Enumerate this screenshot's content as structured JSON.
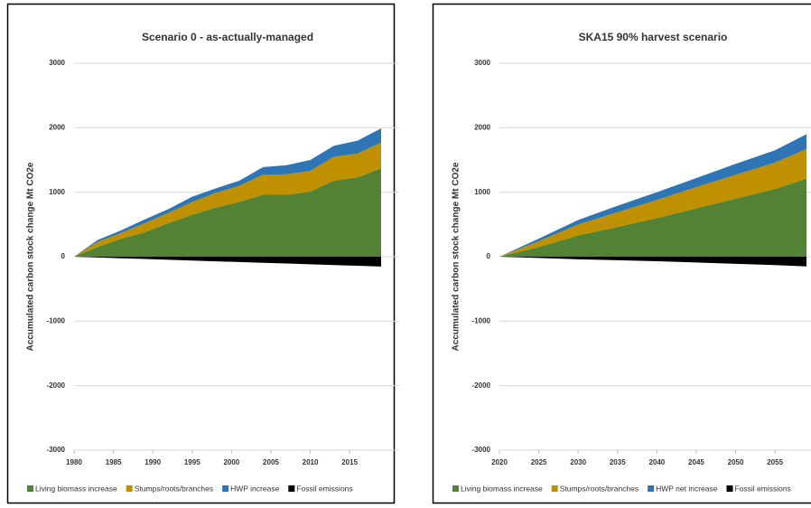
{
  "chart_data": [
    {
      "type": "area",
      "title": "Scenario 0 - as-actually-managed",
      "y_label": "Accumulated carbon stock change Mt CO2e",
      "x": [
        1980,
        1983,
        1986,
        1989,
        1992,
        1995,
        1998,
        2001,
        2004,
        2007,
        2010,
        2013,
        2016,
        2019
      ],
      "xlim": [
        1980,
        2019
      ],
      "xticks": [
        1980,
        1985,
        1990,
        1995,
        2000,
        2005,
        2010,
        2015
      ],
      "ylim": [
        -3000,
        3000
      ],
      "yticks": [
        -3000,
        -2000,
        -1000,
        0,
        1000,
        2000,
        3000
      ],
      "grid": true,
      "series": [
        {
          "name": "Living biomass increase",
          "color": "#548235",
          "values": [
            0,
            150,
            280,
            380,
            520,
            650,
            760,
            850,
            960,
            960,
            1010,
            1180,
            1230,
            1370
          ]
        },
        {
          "name": "Stumps/roots/branches",
          "color": "#bf9000",
          "values": [
            0,
            80,
            90,
            140,
            160,
            200,
            230,
            250,
            310,
            320,
            320,
            370,
            370,
            400
          ]
        },
        {
          "name": "HWP increase",
          "color": "#2e75b6",
          "values": [
            0,
            30,
            40,
            60,
            60,
            80,
            70,
            80,
            120,
            140,
            170,
            170,
            200,
            220
          ]
        },
        {
          "name": "Fossil emissions",
          "color": "#000000",
          "values": [
            0,
            -12,
            -24,
            -35,
            -47,
            -59,
            -71,
            -83,
            -94,
            -106,
            -118,
            -130,
            -141,
            -153
          ]
        }
      ]
    },
    {
      "type": "area",
      "title": "SKA15 90% harvest scenario",
      "y_label": "Accumulated carbon stock change Mt CO2e",
      "x": [
        2020,
        2025,
        2030,
        2035,
        2040,
        2045,
        2050,
        2055,
        2059
      ],
      "xlim": [
        2020,
        2059
      ],
      "xticks": [
        2020,
        2025,
        2030,
        2035,
        2040,
        2045,
        2050,
        2055
      ],
      "ylim": [
        -3000,
        3000
      ],
      "yticks": [
        -3000,
        -2000,
        -1000,
        0,
        1000,
        2000,
        3000
      ],
      "grid": true,
      "series": [
        {
          "name": "Living biomass increase",
          "color": "#548235",
          "values": [
            0,
            150,
            330,
            460,
            600,
            750,
            900,
            1050,
            1210
          ]
        },
        {
          "name": "Stumps/roots/branches",
          "color": "#bf9000",
          "values": [
            0,
            90,
            170,
            230,
            280,
            330,
            370,
            410,
            460
          ]
        },
        {
          "name": "HWP net increase",
          "color": "#2e75b6",
          "values": [
            0,
            40,
            70,
            100,
            120,
            140,
            170,
            190,
            230
          ]
        },
        {
          "name": "Fossil emissions",
          "color": "#000000",
          "values": [
            0,
            -20,
            -40,
            -55,
            -70,
            -90,
            -110,
            -130,
            -150
          ]
        }
      ]
    }
  ]
}
